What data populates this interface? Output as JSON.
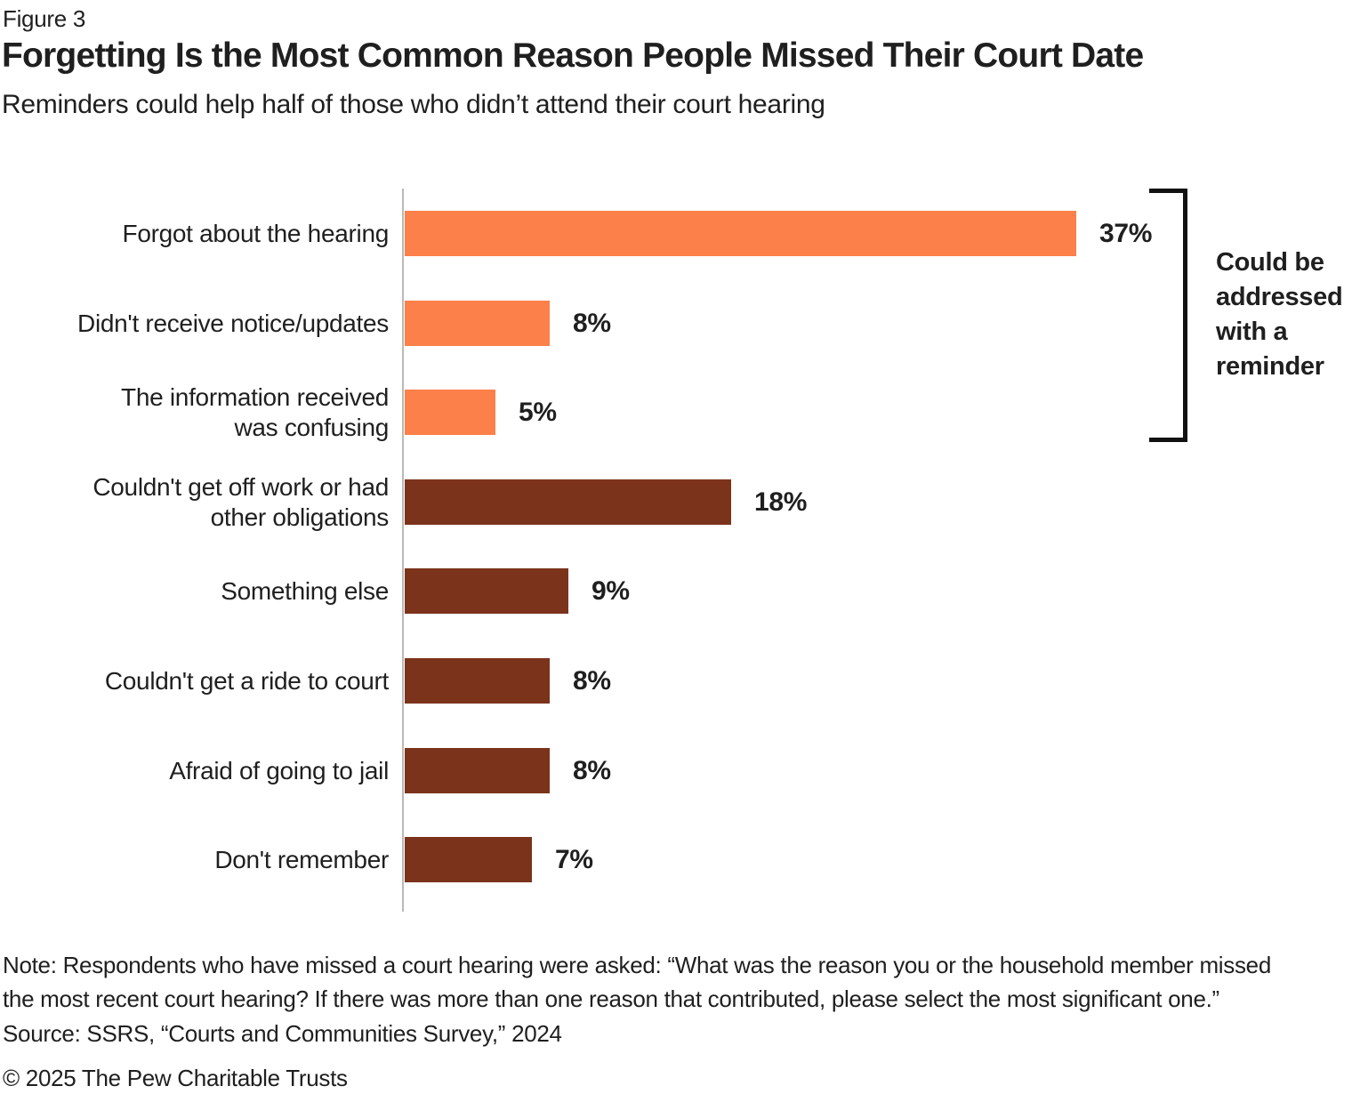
{
  "figure_label": "Figure 3",
  "title": "Forgetting Is the Most Common Reason People Missed Their Court Date",
  "subtitle": "Reminders could help half of those who didn’t attend their court hearing",
  "chart_data": {
    "type": "bar",
    "orientation": "horizontal",
    "categories": [
      "Forgot about the hearing",
      "Didn't receive notice/updates",
      "The information received\nwas confusing",
      "Couldn't get off work or had\nother obligations",
      "Something else",
      "Couldn't get a ride to court",
      "Afraid of going to jail",
      "Don't remember"
    ],
    "values": [
      37,
      8,
      5,
      18,
      9,
      8,
      8,
      7
    ],
    "value_labels": [
      "37%",
      "8%",
      "5%",
      "18%",
      "9%",
      "8%",
      "8%",
      "7%"
    ],
    "bar_colors": [
      "#FC8049",
      "#FC8049",
      "#FC8049",
      "#7B331B",
      "#7B331B",
      "#7B331B",
      "#7B331B",
      "#7B331B"
    ],
    "xlim": [
      0,
      40
    ],
    "grid": false,
    "legend": false,
    "annotation": {
      "label": "Could be addressed with a reminder",
      "applies_to_categories": [
        "Forgot about the hearing",
        "Didn't receive notice/updates",
        "The information received was confusing"
      ]
    },
    "colors": {
      "reminder_orange": "#FC8049",
      "other_rust": "#7B331B",
      "axis_gray": "#B9B9B9",
      "bracket_black": "#111111",
      "text_black": "#1F1F1F"
    }
  },
  "footer": {
    "note_lines": [
      "Note: Respondents who have missed a court hearing were asked: “What was the reason you or the household member missed",
      "the most recent court hearing? If there was more than one reason that contributed, please select the most significant one.”"
    ],
    "source": "Source: SSRS, “Courts and Communities Survey,” 2024",
    "copyright": "© 2025 The Pew Charitable Trusts"
  }
}
